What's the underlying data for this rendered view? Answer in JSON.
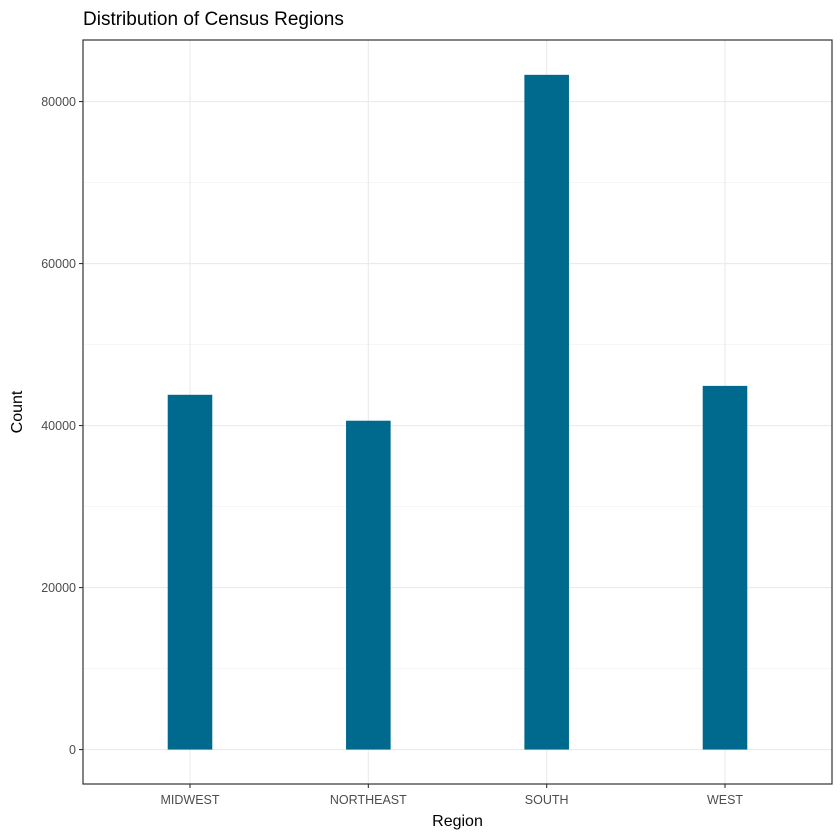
{
  "chart_data": {
    "type": "bar",
    "title": "Distribution of Census Regions",
    "xlabel": "Region",
    "ylabel": "Count",
    "categories": [
      "MIDWEST",
      "NORTHEAST",
      "SOUTH",
      "WEST"
    ],
    "values": [
      43800,
      40600,
      83300,
      44900
    ],
    "ylim": [
      -4250,
      87600
    ],
    "yticks": [
      0,
      20000,
      40000,
      60000,
      80000
    ],
    "ytick_labels": [
      "0",
      "20000",
      "40000",
      "60000",
      "80000"
    ],
    "grid": true,
    "legend": "none",
    "bar_color": "#006a8e"
  }
}
